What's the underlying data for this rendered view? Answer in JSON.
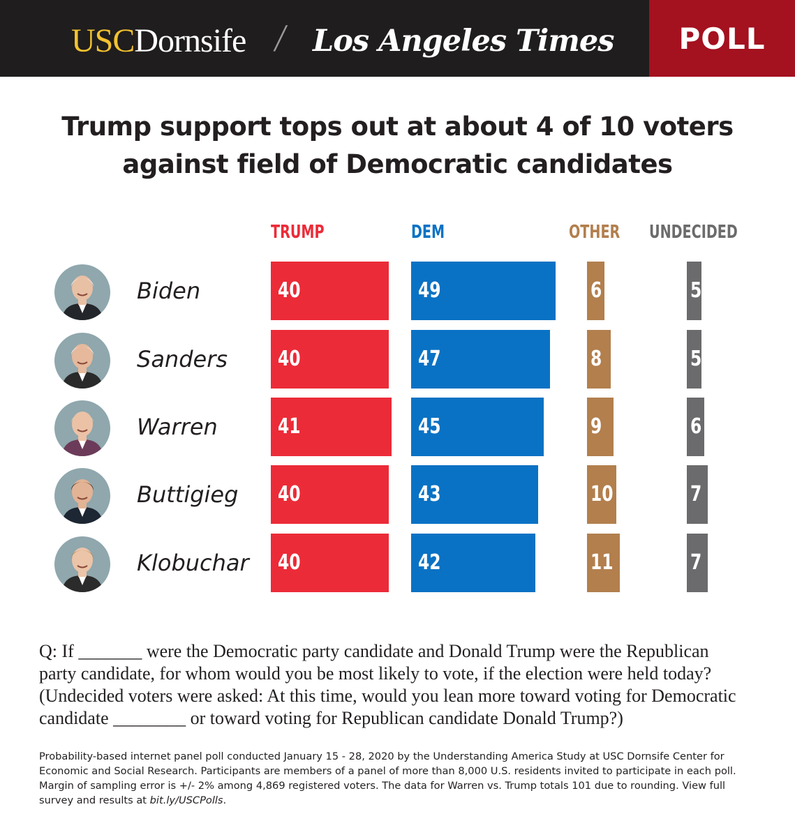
{
  "header": {
    "usc_part1": "USC",
    "usc_part2": "Dornsife",
    "separator": "/",
    "lat": "Los Angeles Times",
    "badge": "POLL"
  },
  "title_lines": [
    "Trump support tops out at about 4 of 10 voters",
    "against field of Democratic candidates"
  ],
  "colors": {
    "trump": "#ec2b38",
    "dem": "#0a72c4",
    "other": "#b27f4d",
    "undecided": "#6b6b6d"
  },
  "chart_data": {
    "type": "bar",
    "categories": [
      "Biden",
      "Sanders",
      "Warren",
      "Buttigieg",
      "Klobuchar"
    ],
    "series": [
      {
        "name": "TRUMP",
        "values": [
          40,
          40,
          41,
          40,
          40
        ]
      },
      {
        "name": "DEM",
        "values": [
          49,
          47,
          45,
          43,
          42
        ]
      },
      {
        "name": "OTHER",
        "values": [
          6,
          8,
          9,
          10,
          11
        ]
      },
      {
        "name": "UNDECIDED",
        "values": [
          5,
          5,
          6,
          7,
          7
        ]
      }
    ],
    "title": "Trump support tops out at about 4 of 10 voters against field of Democratic candidates",
    "unit": "percent"
  },
  "question_lines": [
    "Q: If _______ were the Democratic party candidate and Donald Trump were the Republican",
    "party candidate, for whom would you be most likely to vote, if the election were held today?",
    "(Undecided voters were asked: At this time, would you lean more toward voting for Democratic",
    "candidate ________ or toward voting for Republican candidate Donald Trump?)"
  ],
  "note_lines": [
    "Probability-based internet panel poll conducted January 15 - 28, 2020 by the Understanding America Study at USC Dornsife Center for",
    "Economic and Social Research. Participants are members of a panel of more than 8,000 U.S. residents invited to participate in each poll.",
    "Margin of sampling error is +/- 2% among 4,869 registered voters. The data for Warren vs. Trump totals 101 due to rounding. View full"
  ],
  "note_last": "survey and results at ",
  "note_link": "bit.ly/USCPolls",
  "note_end": "."
}
